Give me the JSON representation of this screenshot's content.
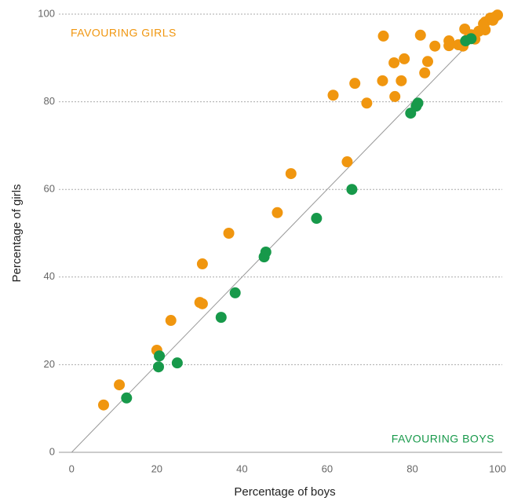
{
  "chart_data": {
    "type": "scatter",
    "x_label": "Percentage of boys",
    "y_label": "Percentage of girls",
    "annotations": [
      {
        "text": "FAVOURING GIRLS",
        "color": "#f0960f"
      },
      {
        "text": "FAVOURING BOYS",
        "color": "#17994a"
      }
    ],
    "xlim": [
      -3,
      100
    ],
    "ylim": [
      0,
      100
    ],
    "xticks": [
      0,
      20,
      40,
      60,
      80,
      100
    ],
    "yticks": [
      0,
      20,
      40,
      60,
      80,
      100
    ],
    "grid": true,
    "reference_line": {
      "x": [
        0,
        100
      ],
      "y": [
        0,
        100
      ],
      "color": "#999"
    },
    "series": [
      {
        "color": "#f0960f",
        "x": [
          7.5,
          11.2,
          20.0,
          23.3,
          30.1,
          30.7,
          30.7,
          36.9,
          48.3,
          51.5,
          64.7,
          61.4,
          66.5,
          69.3,
          73.2,
          73.0,
          75.7,
          75.9,
          77.4,
          78.1,
          81.9,
          82.9,
          83.6,
          85.3,
          88.6,
          88.6,
          90.8,
          91.9,
          92.3,
          93.0,
          93.8,
          94.7,
          95.6,
          96.7,
          97.1,
          97.1,
          98.3,
          99.3,
          100,
          98.9
        ],
        "y": [
          10.8,
          15.4,
          23.3,
          30.1,
          34.2,
          33.9,
          43.0,
          50.0,
          54.7,
          63.6,
          66.3,
          81.5,
          84.2,
          79.7,
          95.0,
          84.8,
          88.9,
          81.2,
          84.8,
          89.8,
          95.2,
          86.6,
          89.2,
          92.7,
          93.9,
          92.8,
          93.0,
          92.7,
          96.6,
          94.3,
          95.3,
          94.3,
          96.1,
          97.8,
          96.4,
          98.2,
          99.1,
          99.3,
          99.8,
          98.6
        ]
      },
      {
        "color": "#17994a",
        "x": [
          12.9,
          20.6,
          20.4,
          24.8,
          35.1,
          38.4,
          45.2,
          45.6,
          57.5,
          65.8,
          79.6,
          80.9,
          81.3,
          92.5,
          93.8
        ],
        "y": [
          12.4,
          22.0,
          19.5,
          20.4,
          30.8,
          36.4,
          44.6,
          45.7,
          53.4,
          60.0,
          77.4,
          79.0,
          79.7,
          93.9,
          94.4
        ]
      }
    ]
  }
}
